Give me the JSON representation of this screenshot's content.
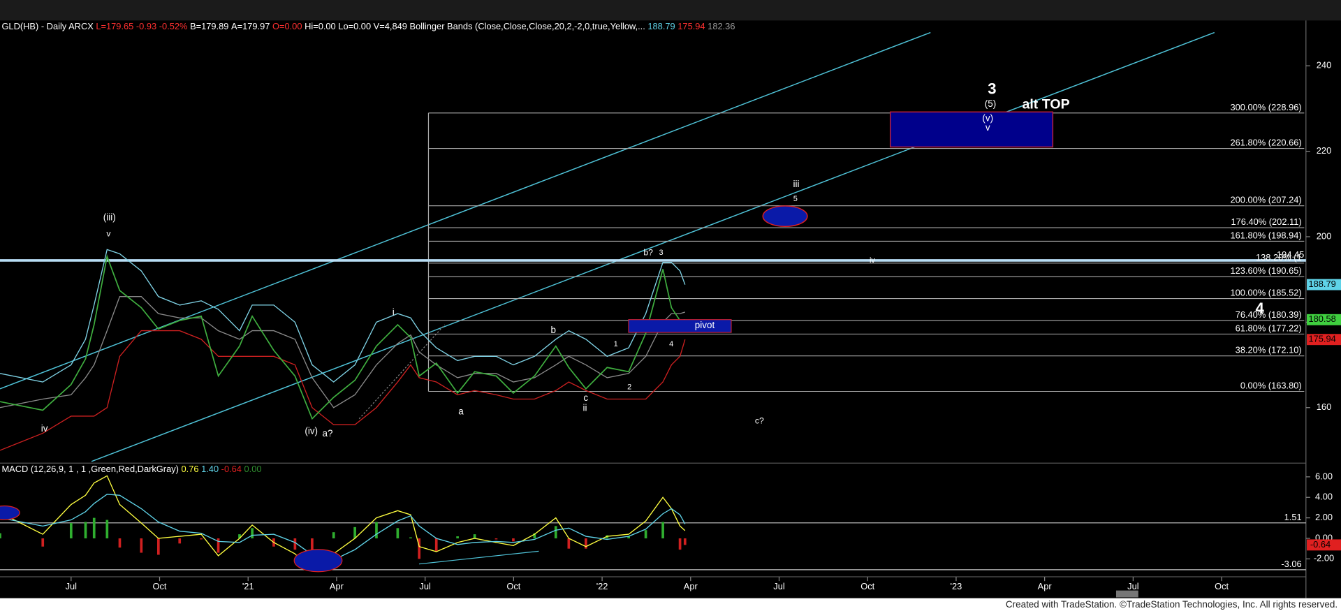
{
  "chart_data": [
    {
      "type": "line",
      "header": [
        {
          "text": "GLD(HB) - Daily ARCX",
          "color": "#ffffff"
        },
        {
          "text": "L=179.65",
          "color": "#ff3030"
        },
        {
          "text": "-0.93",
          "color": "#ff3030"
        },
        {
          "text": "-0.52%",
          "color": "#ff3030"
        },
        {
          "text": "B=179.89",
          "color": "#ffffff"
        },
        {
          "text": "A=179.97",
          "color": "#ffffff"
        },
        {
          "text": "O=0.00",
          "color": "#ff3030"
        },
        {
          "text": "Hi=0.00",
          "color": "#ffffff"
        },
        {
          "text": "Lo=0.00",
          "color": "#ffffff"
        },
        {
          "text": "V=4,849",
          "color": "#ffffff"
        },
        {
          "text": "Bollinger Bands (Close,Close,Close,20,2,-2,0,true,Yellow,...",
          "color": "#ffffff"
        },
        {
          "text": "188.79",
          "color": "#5fd3e8"
        },
        {
          "text": "175.94",
          "color": "#ff3030"
        },
        {
          "text": "182.36",
          "color": "#9a9a9a"
        }
      ],
      "x": [
        -2.41,
        -0.96,
        0,
        0.49,
        0.78,
        1.22,
        1.65,
        2.38,
        2.96,
        3.68,
        4.41,
        4.99,
        5.71,
        6.14,
        6.87,
        7.59,
        8.17,
        8.9,
        9.62,
        10.35,
        11.07,
        11.51,
        11.8,
        12.38,
        13.1,
        13.68,
        14.41,
        14.99,
        15.71,
        16.43,
        16.87,
        17.45,
        18.17,
        18.9,
        19.48,
        20.06,
        20.35,
        20.64,
        20.81
      ],
      "series": [
        {
          "color": "#7fd3e6",
          "values": [
            168,
            166,
            170,
            176,
            184,
            197,
            196,
            192,
            186,
            184,
            185,
            183,
            178,
            184,
            184,
            180,
            170,
            166,
            170,
            180,
            182,
            181,
            178,
            174,
            171,
            172,
            172,
            170,
            172,
            176,
            178,
            176,
            172,
            174,
            182,
            194,
            194,
            192,
            188.79
          ]
        },
        {
          "color": "#8a8a8a",
          "values": [
            160,
            162,
            163,
            167,
            170,
            178,
            186,
            186,
            182,
            181,
            181,
            178,
            176,
            178,
            178,
            176,
            167,
            160,
            163,
            170,
            175,
            177,
            173,
            170,
            167,
            168,
            168,
            166,
            167,
            170,
            172,
            170,
            167,
            168,
            172,
            180,
            182,
            182,
            182.36
          ]
        },
        {
          "color": "#cc2020",
          "values": [
            150,
            154,
            158,
            158,
            158,
            160,
            172,
            178,
            178,
            178,
            176,
            172,
            172,
            172,
            172,
            170,
            160,
            156,
            156,
            160,
            166,
            170,
            167,
            166,
            163,
            164,
            163,
            162,
            162,
            164,
            166,
            164,
            162,
            162,
            162,
            166,
            170,
            172,
            175.94
          ]
        },
        {
          "color": "#3fae3f",
          "values": [
            161.4,
            159.4,
            165.4,
            171.4,
            179.4,
            195.4,
            187.4,
            183.4,
            178.4,
            180.4,
            181.4,
            167.4,
            174.4,
            181.4,
            173.4,
            167.4,
            157.4,
            162.4,
            166.4,
            174.4,
            179.4,
            176.4,
            167.4,
            170.4,
            163.4,
            168.4,
            167.4,
            163.4,
            167.4,
            174.4,
            169.4,
            164.4,
            169.4,
            168.4,
            177.4,
            192.4,
            183.4,
            180.4,
            180.58
          ]
        }
      ],
      "xlim": [
        -2.41,
        41.8
      ],
      "xticks": [
        {
          "value": 0,
          "label": "Jul"
        },
        {
          "value": 3,
          "label": "Oct"
        },
        {
          "value": 6,
          "label": "'21"
        },
        {
          "value": 9,
          "label": "Apr"
        },
        {
          "value": 12,
          "label": "Jul"
        },
        {
          "value": 15,
          "label": "Oct"
        },
        {
          "value": 18,
          "label": "'22"
        },
        {
          "value": 21,
          "label": "Apr"
        },
        {
          "value": 24,
          "label": "Jul"
        },
        {
          "value": 27,
          "label": "Oct"
        },
        {
          "value": 30,
          "label": "'23"
        },
        {
          "value": 33,
          "label": "Apr"
        },
        {
          "value": 36,
          "label": "Jul"
        },
        {
          "value": 39,
          "label": "Oct"
        }
      ],
      "ylim": [
        147.4,
        250.4
      ],
      "yticks": [
        160,
        180,
        200,
        220,
        240
      ],
      "fib_levels": [
        {
          "value": 228.96,
          "label": "300.00% (228.96)",
          "color": "#ffffff"
        },
        {
          "value": 220.66,
          "label": "261.80% (220.66)",
          "color": "#ffffff"
        },
        {
          "value": 207.24,
          "label": "200.00% (207.24)",
          "color": "#ffffff"
        },
        {
          "value": 202.11,
          "label": "176.40% (202.11)",
          "color": "#ffffff"
        },
        {
          "value": 198.94,
          "label": "161.80% (198.94)",
          "color": "#d8c24a"
        },
        {
          "value": 193.82,
          "label": "138.20% (1",
          "color": "#5fb8c8"
        },
        {
          "value": 190.65,
          "label": "123.60% (190.65)",
          "color": "#ffffff"
        },
        {
          "value": 185.52,
          "label": "100.00% (185.52)",
          "color": "#ffffff"
        },
        {
          "value": 180.39,
          "label": "76.40% (180.39)",
          "color": "#ffffff"
        },
        {
          "value": 177.22,
          "label": "61.80% (177.22)",
          "color": "#d8c24a"
        },
        {
          "value": 172.1,
          "label": "38.20% (172.10)",
          "color": "#5fb8c8"
        },
        {
          "value": 163.8,
          "label": "0.00% (163.80)",
          "color": "#ffffff"
        }
      ],
      "level_line": 194.45,
      "price_tags": [
        {
          "value": 188.79,
          "color": "#5fd3e8"
        },
        {
          "value": 180.58,
          "color": "#3fcf3f"
        },
        {
          "value": 175.94,
          "color": "#e02020"
        }
      ],
      "annotations": [
        {
          "text": "(iii)",
          "color": "#3fcf3f"
        },
        {
          "text": "v",
          "color": "#3fcf3f"
        },
        {
          "text": "iv",
          "color": "#3fcf3f"
        },
        {
          "text": "(iv)",
          "color": "#3fcf3f"
        },
        {
          "text": "a?",
          "color": "#e02020"
        },
        {
          "text": "i",
          "color": "#3fcf3f"
        },
        {
          "text": "a",
          "color": "#3fcf3f"
        },
        {
          "text": "b",
          "color": "#3fcf3f"
        },
        {
          "text": "c",
          "color": "#3fcf3f"
        },
        {
          "text": "ii",
          "color": "#3fcf3f"
        },
        {
          "text": "1",
          "color": "#3fcf3f"
        },
        {
          "text": "2",
          "color": "#3fcf3f"
        },
        {
          "text": "3",
          "color": "#3fcf3f"
        },
        {
          "text": "b?",
          "color": "#e02020"
        },
        {
          "text": "4",
          "color": "#3fcf3f"
        },
        {
          "text": "c?",
          "color": "#e02020"
        },
        {
          "text": "iii",
          "color": "#3fcf3f"
        },
        {
          "text": "5",
          "color": "#3fcf3f"
        },
        {
          "text": "iv",
          "color": "#3fcf3f"
        },
        {
          "text": "3",
          "color": "#3fcf3f"
        },
        {
          "text": "(5)",
          "color": "#3fcf3f"
        },
        {
          "text": "(v)",
          "color": "#5fd3e8"
        },
        {
          "text": "v",
          "color": "#5fd3e8"
        },
        {
          "text": "alt TOP",
          "color": "#ffff40"
        },
        {
          "text": "4",
          "color": "#3fcf3f"
        },
        {
          "text": "pivot",
          "color": "#ffffff"
        }
      ]
    },
    {
      "type": "line",
      "title": "MACD (12,26,9, 1 , 1 ,Green,Red,DarkGray)",
      "header": [
        {
          "text": "0.76",
          "color": "#ffff40"
        },
        {
          "text": "1.40",
          "color": "#5fd3e8"
        },
        {
          "text": "-0.64",
          "color": "#e02020"
        },
        {
          "text": "0.00",
          "color": "#2f8f2f"
        }
      ],
      "x": [
        -2.41,
        -0.96,
        0,
        0.49,
        0.78,
        1.22,
        1.65,
        2.38,
        2.96,
        3.68,
        4.41,
        4.99,
        5.71,
        6.14,
        6.87,
        7.59,
        8.17,
        8.9,
        9.62,
        10.35,
        11.07,
        11.51,
        11.8,
        12.38,
        13.1,
        13.68,
        14.41,
        14.99,
        15.71,
        16.43,
        16.87,
        17.45,
        18.17,
        18.9,
        19.48,
        20.06,
        20.35,
        20.64,
        20.81
      ],
      "series": [
        {
          "color": "#ffff40",
          "values": [
            2.5,
            0.4,
            3.3,
            4.2,
            5.4,
            6.1,
            3.3,
            1.5,
            0,
            0.2,
            0.4,
            -1.7,
            0,
            1.3,
            -0.4,
            -1.5,
            -3.2,
            -1.5,
            0,
            2,
            2.7,
            2.3,
            -0.8,
            -1.3,
            -0.4,
            0,
            -0.4,
            -0.7,
            0.4,
            2,
            0,
            -0.8,
            0.2,
            0.4,
            1.7,
            4,
            2.9,
            1.2,
            0.76
          ]
        },
        {
          "color": "#5fd3e8",
          "values": [
            2.0,
            1.2,
            1.8,
            2.6,
            3.4,
            4.3,
            4.2,
            2.9,
            1.6,
            0.7,
            0.5,
            -0.3,
            -0.4,
            0.3,
            0.4,
            -0.4,
            -1.6,
            -2.1,
            -1.1,
            0.4,
            1.7,
            2.2,
            1.2,
            0,
            -0.6,
            -0.4,
            -0.3,
            -0.4,
            -0.1,
            0.8,
            1.0,
            0.2,
            -0.1,
            0.2,
            0.9,
            2.4,
            2.9,
            2.3,
            1.4
          ]
        }
      ],
      "histogram": {
        "up_color": "#2fae2f",
        "down_color": "#d02020",
        "values": [
          0.5,
          -0.8,
          1.5,
          1.6,
          2.0,
          1.8,
          -0.9,
          -1.4,
          -1.6,
          -0.5,
          -0.1,
          -1.4,
          0.4,
          1.0,
          -0.8,
          -1.1,
          -1.6,
          0.6,
          1.1,
          1.6,
          1.0,
          0.1,
          -2.0,
          -1.3,
          0.2,
          0.4,
          -0.1,
          -0.3,
          0.5,
          1.2,
          -1.0,
          -1.0,
          0.3,
          0.2,
          0.8,
          1.6,
          0.0,
          -1.1,
          -0.64
        ]
      },
      "xlim": [
        -2.41,
        41.8
      ],
      "ylim": [
        -3.75,
        7.25
      ],
      "yticks": [
        {
          "value": 6,
          "label": "6.00"
        },
        {
          "value": 4,
          "label": "4.00"
        },
        {
          "value": 2,
          "label": "2.00"
        },
        {
          "value": 0,
          "label": "0.00"
        },
        {
          "value": -2,
          "label": "-2.00"
        }
      ],
      "levels": [
        1.51,
        -3.06
      ],
      "tag": {
        "value": -0.64,
        "label": "-0.64",
        "color": "#e02020"
      }
    }
  ],
  "footer": "Created with TradeStation. ©TradeStation Technologies, Inc. All rights reserved."
}
